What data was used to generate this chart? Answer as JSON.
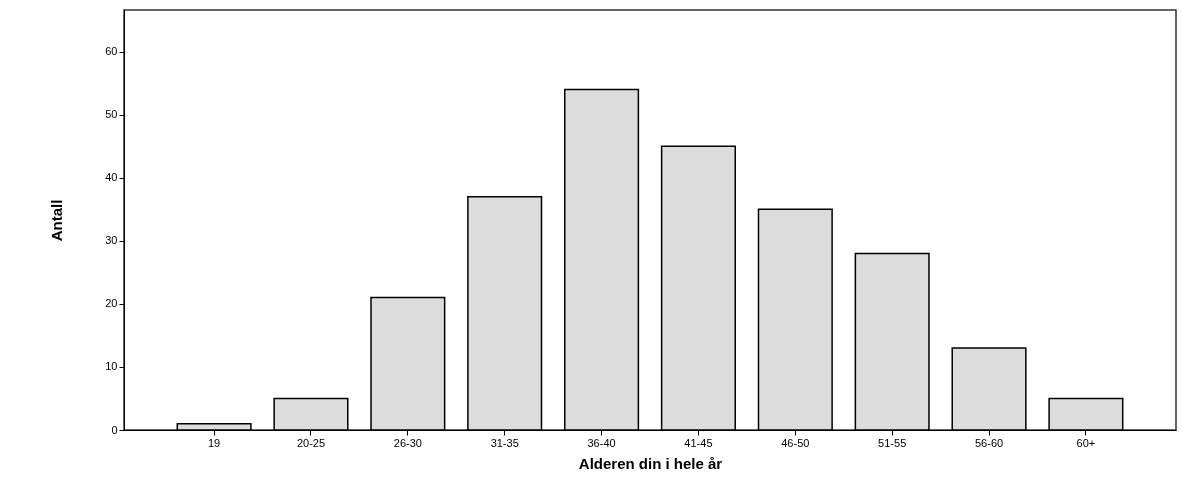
{
  "chart_data": {
    "type": "bar",
    "xlabel": "Alderen din i hele år",
    "ylabel": "Antall",
    "categories": [
      "19",
      "20-25",
      "26-30",
      "31-35",
      "36-40",
      "41-45",
      "46-50",
      "51-55",
      "56-60",
      "60+"
    ],
    "values": [
      1,
      5,
      21,
      37,
      54,
      45,
      35,
      28,
      13,
      5
    ],
    "color": "#dcdcdc",
    "ylim": [
      0,
      66.6
    ],
    "yticks": [
      0,
      10,
      20,
      30,
      40,
      50,
      60
    ],
    "grid": false
  }
}
